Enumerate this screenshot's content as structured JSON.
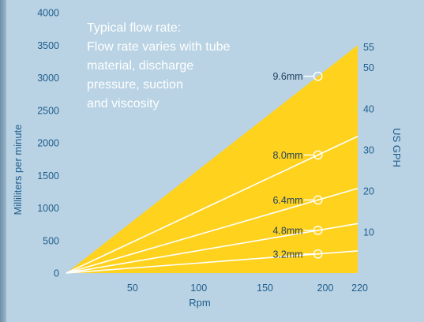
{
  "chart_data": {
    "type": "area",
    "title": "",
    "xlabel": "Rpm",
    "ylabel": "Milliliters per minute",
    "y2label": "US GPH",
    "xlim": [
      0,
      220
    ],
    "ylim": [
      0,
      4000
    ],
    "y2lim": [
      0,
      63.4
    ],
    "x_ticks": [
      50,
      100,
      150,
      200,
      220
    ],
    "y_ticks": [
      0,
      500,
      1000,
      1500,
      2000,
      2500,
      3000,
      3500,
      4000
    ],
    "y2_ticks": [
      10,
      20,
      30,
      40,
      50,
      55
    ],
    "fill_color": "#ffd21e",
    "line_color": "#ffffff",
    "marker_color": "#ffffff",
    "annotation": [
      "Typical flow rate:",
      "Flow rate varies with tube",
      "material, discharge",
      "pressure, suction",
      "and viscosity"
    ],
    "series": [
      {
        "name": "9.6mm",
        "x": [
          0,
          220
        ],
        "y": [
          0,
          3500
        ]
      },
      {
        "name": "8.0mm",
        "x": [
          0,
          220
        ],
        "y": [
          0,
          2100
        ]
      },
      {
        "name": "6.4mm",
        "x": [
          0,
          220
        ],
        "y": [
          0,
          1300
        ]
      },
      {
        "name": "4.8mm",
        "x": [
          0,
          220
        ],
        "y": [
          0,
          760
        ]
      },
      {
        "name": "3.2mm",
        "x": [
          0,
          220
        ],
        "y": [
          0,
          340
        ]
      }
    ],
    "series_marker_x": 190,
    "grid": false,
    "legend": "inline"
  }
}
